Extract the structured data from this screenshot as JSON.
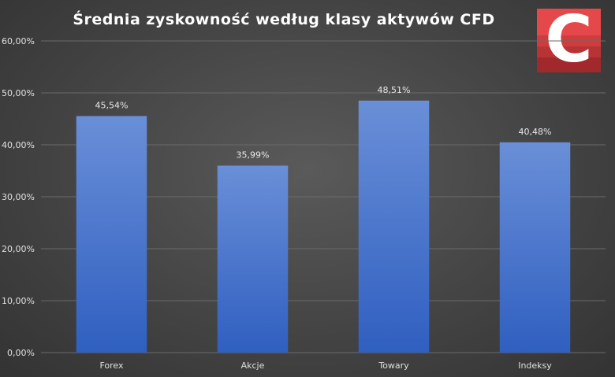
{
  "chart_data": {
    "type": "bar",
    "title": "Średnia zyskowność według klasy aktywów CFD",
    "categories": [
      "Forex",
      "Akcje",
      "Towary",
      "Indeksy"
    ],
    "values": [
      45.54,
      35.99,
      48.51,
      40.48
    ],
    "value_labels": [
      "45,54%",
      "35,99%",
      "48,51%",
      "40,48%"
    ],
    "ylim": [
      0,
      60
    ],
    "yticks": [
      0,
      10,
      20,
      30,
      40,
      50,
      60
    ],
    "ytick_labels": [
      "0,00%",
      "10,00%",
      "20,00%",
      "30,00%",
      "40,00%",
      "50,00%",
      "60,00%"
    ],
    "grid": true,
    "legend": "none",
    "colors": {
      "bar_top": "#6a8fd8",
      "bar_bottom": "#2f5fc0",
      "grid": "#6a6a6a",
      "text": "#e0e0e0"
    }
  },
  "logo": {
    "letter": "C",
    "icon": "brand-logo-c"
  }
}
